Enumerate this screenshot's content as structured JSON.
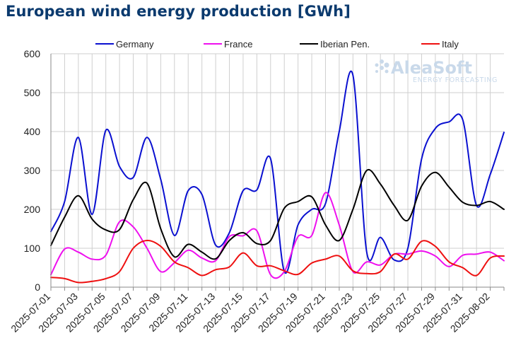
{
  "title": "European wind energy production [GWh]",
  "watermark": {
    "brand": "AleaSoft",
    "tagline": "ENERGY FORECASTING"
  },
  "chart_data": {
    "type": "line",
    "title": "European wind energy production [GWh]",
    "xlabel": "",
    "ylabel": "",
    "ylim": [
      0,
      600
    ],
    "yticks": [
      0,
      100,
      200,
      300,
      400,
      500,
      600
    ],
    "grid": true,
    "legend_position": "top",
    "x": [
      "2025-07-01",
      "2025-07-02",
      "2025-07-03",
      "2025-07-04",
      "2025-07-05",
      "2025-07-06",
      "2025-07-07",
      "2025-07-08",
      "2025-07-09",
      "2025-07-10",
      "2025-07-11",
      "2025-07-12",
      "2025-07-13",
      "2025-07-14",
      "2025-07-15",
      "2025-07-16",
      "2025-07-17",
      "2025-07-18",
      "2025-07-19",
      "2025-07-20",
      "2025-07-21",
      "2025-07-22",
      "2025-07-23",
      "2025-07-24",
      "2025-07-25",
      "2025-07-26",
      "2025-07-27",
      "2025-07-28",
      "2025-07-29",
      "2025-07-30",
      "2025-07-31",
      "2025-08-01",
      "2025-08-02",
      "2025-08-03"
    ],
    "x_tick_labels": [
      "2025-07-01",
      "2025-07-03",
      "2025-07-05",
      "2025-07-07",
      "2025-07-09",
      "2025-07-11",
      "2025-07-13",
      "2025-07-15",
      "2025-07-17",
      "2025-07-19",
      "2025-07-21",
      "2025-07-23",
      "2025-07-25",
      "2025-07-27",
      "2025-07-29",
      "2025-07-31",
      "2025-08-02"
    ],
    "series": [
      {
        "name": "Germany",
        "color": "#0a10d0",
        "values": [
          143,
          220,
          385,
          187,
          403,
          310,
          282,
          385,
          277,
          133,
          248,
          238,
          108,
          140,
          248,
          250,
          330,
          40,
          160,
          200,
          215,
          400,
          545,
          90,
          128,
          70,
          100,
          330,
          408,
          425,
          430,
          210,
          290,
          398
        ]
      },
      {
        "name": "France",
        "color": "#ee10ee",
        "values": [
          32,
          98,
          90,
          72,
          82,
          168,
          155,
          100,
          40,
          63,
          95,
          75,
          68,
          130,
          132,
          145,
          32,
          40,
          130,
          133,
          243,
          160,
          40,
          65,
          57,
          85,
          85,
          93,
          80,
          53,
          82,
          85,
          90,
          68
        ]
      },
      {
        "name": "Iberian Pen.",
        "color": "#000000",
        "values": [
          107,
          180,
          235,
          175,
          147,
          148,
          225,
          267,
          150,
          78,
          110,
          90,
          73,
          120,
          140,
          112,
          120,
          203,
          220,
          232,
          160,
          120,
          200,
          300,
          265,
          210,
          172,
          260,
          295,
          257,
          218,
          210,
          220,
          200
        ]
      },
      {
        "name": "Italy",
        "color": "#ee1010",
        "values": [
          25,
          22,
          12,
          15,
          22,
          40,
          100,
          120,
          105,
          65,
          50,
          30,
          45,
          52,
          88,
          55,
          55,
          42,
          33,
          62,
          72,
          80,
          42,
          35,
          40,
          85,
          72,
          118,
          105,
          65,
          50,
          30,
          75,
          80
        ]
      }
    ]
  }
}
